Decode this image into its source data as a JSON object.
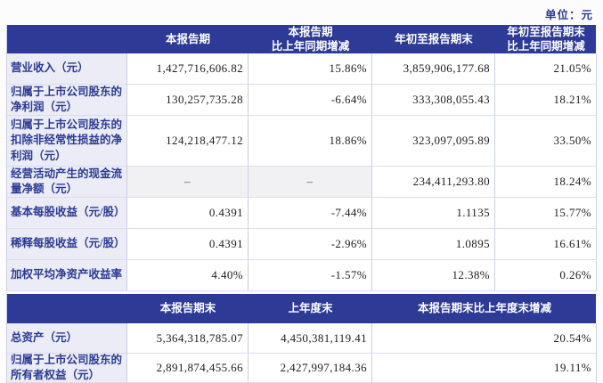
{
  "page": {
    "unit_label": "单位：元"
  },
  "table1": {
    "headers": {
      "current_period": "本报告期",
      "current_period_yoy": "本报告期\n比上年同期增减",
      "ytd": "年初至报告期末",
      "ytd_yoy": "年初至报告期末\n比上年同期增减"
    },
    "rows": [
      {
        "label": "营业收入（元）",
        "current_period": "1,427,716,606.82",
        "current_period_yoy": "15.86%",
        "ytd": "3,859,906,177.68",
        "ytd_yoy": "21.05%"
      },
      {
        "label": "归属于上市公司股东的净利润（元）",
        "current_period": "130,257,735.28",
        "current_period_yoy": "-6.64%",
        "ytd": "333,308,055.43",
        "ytd_yoy": "18.21%"
      },
      {
        "label": "归属于上市公司股东的扣除非经常性损益的净利润（元）",
        "current_period": "124,218,477.12",
        "current_period_yoy": "18.86%",
        "ytd": "323,097,095.89",
        "ytd_yoy": "33.50%"
      },
      {
        "label": "经营活动产生的现金流量净额（元）",
        "current_period": "–",
        "current_period_yoy": "–",
        "ytd": "234,411,293.80",
        "ytd_yoy": "18.24%"
      },
      {
        "label": "基本每股收益（元/股）",
        "current_period": "0.4391",
        "current_period_yoy": "-7.44%",
        "ytd": "1.1135",
        "ytd_yoy": "15.77%"
      },
      {
        "label": "稀释每股收益（元/股）",
        "current_period": "0.4391",
        "current_period_yoy": "-2.96%",
        "ytd": "1.0895",
        "ytd_yoy": "16.61%"
      },
      {
        "label": "加权平均净资产收益率",
        "current_period": "4.40%",
        "current_period_yoy": "-1.57%",
        "ytd": "12.38%",
        "ytd_yoy": "0.26%"
      }
    ]
  },
  "table2": {
    "headers": {
      "period_end": "本报告期末",
      "prior_year_end": "上年度末",
      "change": "本报告期末比上年度末增减"
    },
    "rows": [
      {
        "label": "总资产（元）",
        "period_end": "5,364,318,785.07",
        "prior_year_end": "4,450,381,119.41",
        "change": "20.54%"
      },
      {
        "label": "归属于上市公司股东的所有者权益（元）",
        "period_end": "2,891,874,455.66",
        "prior_year_end": "2,427,997,184.36",
        "change": "19.11%"
      }
    ]
  },
  "colors": {
    "header_bg": "#2d3a96",
    "label_text": "#2b3a96",
    "label_bg": "#ebecf5",
    "dash_cell_bg": "#f1f1f3"
  }
}
